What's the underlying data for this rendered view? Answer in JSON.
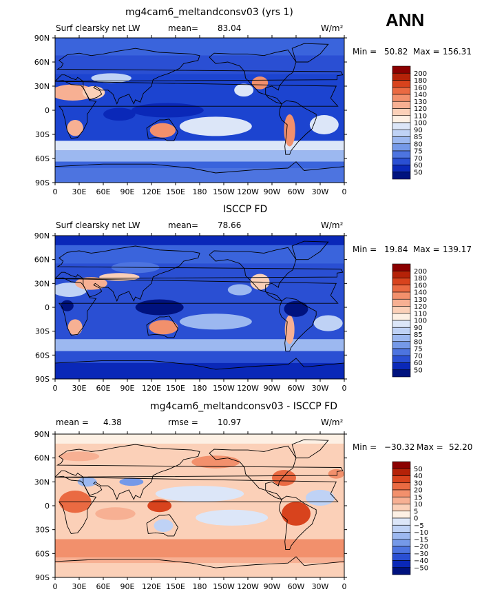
{
  "season": "ANN",
  "panels": [
    {
      "title": "mg4cam6_meltandconsv03 (yrs 1)",
      "left_label": "Surf clearsky net LW",
      "stat_label": "mean=",
      "stat_value": "83.04",
      "units": "W/m²",
      "min_label": "Min =",
      "min_value": "50.82",
      "max_label": "Max =",
      "max_value": "156.31",
      "colorbar": {
        "levels": [
          "200",
          "180",
          "160",
          "140",
          "130",
          "120",
          "110",
          "100",
          "90",
          "85",
          "80",
          "75",
          "70",
          "60",
          "50"
        ],
        "colors": [
          "#8b0000",
          "#b52208",
          "#d8431d",
          "#ea6a42",
          "#f2906c",
          "#f7b093",
          "#fbd0b8",
          "#fdf0e4",
          "#dce6f8",
          "#bfd2f5",
          "#9cb8f0",
          "#7599e8",
          "#4d74e0",
          "#2a4fd3",
          "#0a28b8",
          "#00127e"
        ]
      },
      "field": {
        "base": "#1c44d0",
        "bands": [
          {
            "lat": [
              90,
              68
            ],
            "color": "#3a64dc"
          },
          {
            "lat": [
              68,
              45
            ],
            "color": "#2a4fd3"
          },
          {
            "lat": [
              -38,
              -50
            ],
            "color": "#dce6f8"
          },
          {
            "lat": [
              -50,
              -64
            ],
            "color": "#9cb8f0"
          },
          {
            "lat": [
              -64,
              -72
            ],
            "color": "#3a64dc"
          },
          {
            "lat": [
              -72,
              -90
            ],
            "color": "#4d74e0"
          }
        ],
        "blobs": [
          {
            "lon": 22,
            "lat": 22,
            "rx": 28,
            "ry": 10,
            "color": "#f7b093"
          },
          {
            "lon": 48,
            "lat": 22,
            "rx": 14,
            "ry": 8,
            "color": "#fbd0b8"
          },
          {
            "lon": 25,
            "lat": -22,
            "rx": 10,
            "ry": 10,
            "color": "#f7b093"
          },
          {
            "lon": 134,
            "lat": -25,
            "rx": 16,
            "ry": 9,
            "color": "#f2906c"
          },
          {
            "lon": 255,
            "lat": 34,
            "rx": 10,
            "ry": 8,
            "color": "#f2906c"
          },
          {
            "lon": 292,
            "lat": -25,
            "rx": 7,
            "ry": 20,
            "color": "#f2906c"
          },
          {
            "lon": 200,
            "lat": -20,
            "rx": 45,
            "ry": 12,
            "color": "#dce6f8"
          },
          {
            "lon": 335,
            "lat": -18,
            "rx": 18,
            "ry": 12,
            "color": "#dce6f8"
          },
          {
            "lon": 70,
            "lat": 40,
            "rx": 25,
            "ry": 6,
            "color": "#bfd2f5"
          },
          {
            "lon": 140,
            "lat": 0,
            "rx": 45,
            "ry": 9,
            "color": "#0a28b8"
          },
          {
            "lon": 80,
            "lat": -5,
            "rx": 20,
            "ry": 8,
            "color": "#0a28b8"
          },
          {
            "lon": 235,
            "lat": 25,
            "rx": 12,
            "ry": 8,
            "color": "#dce6f8"
          }
        ]
      }
    },
    {
      "title": "ISCCP FD",
      "left_label": "Surf clearsky net LW",
      "stat_label": "mean=",
      "stat_value": "78.66",
      "units": "W/m²",
      "min_label": "Min =",
      "min_value": "19.84",
      "max_label": "Max =",
      "max_value": "139.17",
      "colorbar": {
        "levels": [
          "200",
          "180",
          "160",
          "140",
          "130",
          "120",
          "110",
          "100",
          "90",
          "85",
          "80",
          "75",
          "70",
          "60",
          "50"
        ],
        "colors": [
          "#8b0000",
          "#b52208",
          "#d8431d",
          "#ea6a42",
          "#f2906c",
          "#f7b093",
          "#fbd0b8",
          "#fdf0e4",
          "#dce6f8",
          "#bfd2f5",
          "#9cb8f0",
          "#7599e8",
          "#4d74e0",
          "#2a4fd3",
          "#0a28b8",
          "#00127e"
        ]
      },
      "field": {
        "base": "#2a4fd3",
        "bands": [
          {
            "lat": [
              90,
              78
            ],
            "color": "#0a28b8"
          },
          {
            "lat": [
              78,
              55
            ],
            "color": "#3a64dc"
          },
          {
            "lat": [
              -40,
              -55
            ],
            "color": "#9cb8f0"
          },
          {
            "lat": [
              -55,
              -70
            ],
            "color": "#2a4fd3"
          },
          {
            "lat": [
              -70,
              -90
            ],
            "color": "#0a28b8"
          }
        ],
        "blobs": [
          {
            "lon": 18,
            "lat": 22,
            "rx": 22,
            "ry": 9,
            "color": "#bfd2f5"
          },
          {
            "lon": 45,
            "lat": 30,
            "rx": 20,
            "ry": 8,
            "color": "#f7b093"
          },
          {
            "lon": 80,
            "lat": 38,
            "rx": 25,
            "ry": 5,
            "color": "#fbd0b8"
          },
          {
            "lon": 25,
            "lat": -25,
            "rx": 9,
            "ry": 10,
            "color": "#f7b093"
          },
          {
            "lon": 135,
            "lat": -25,
            "rx": 18,
            "ry": 9,
            "color": "#f2906c"
          },
          {
            "lon": 255,
            "lat": 32,
            "rx": 12,
            "ry": 10,
            "color": "#fbd0b8"
          },
          {
            "lon": 292,
            "lat": -28,
            "rx": 6,
            "ry": 18,
            "color": "#f7b093"
          },
          {
            "lon": 130,
            "lat": 0,
            "rx": 30,
            "ry": 10,
            "color": "#00127e"
          },
          {
            "lon": 300,
            "lat": -2,
            "rx": 15,
            "ry": 10,
            "color": "#00127e"
          },
          {
            "lon": 15,
            "lat": 2,
            "rx": 8,
            "ry": 7,
            "color": "#00127e"
          },
          {
            "lon": 200,
            "lat": -18,
            "rx": 45,
            "ry": 10,
            "color": "#9cb8f0"
          },
          {
            "lon": 340,
            "lat": -20,
            "rx": 18,
            "ry": 10,
            "color": "#bfd2f5"
          },
          {
            "lon": 230,
            "lat": 22,
            "rx": 15,
            "ry": 7,
            "color": "#9cb8f0"
          },
          {
            "lon": 100,
            "lat": 50,
            "rx": 30,
            "ry": 7,
            "color": "#4d74e0"
          }
        ]
      }
    },
    {
      "title": "mg4cam6_meltandconsv03 - ISCCP FD",
      "left_label": "mean =",
      "left_value": "4.38",
      "stat_label": "rmse =",
      "stat_value": "10.97",
      "units": "W/m²",
      "min_label": "Min =",
      "min_value": "−30.32",
      "max_label": "Max =",
      "max_value": "52.20",
      "colorbar": {
        "levels": [
          "50",
          "40",
          "30",
          "20",
          "15",
          "10",
          "5",
          "0",
          "−5",
          "−10",
          "−15",
          "−20",
          "−30",
          "−40",
          "−50"
        ],
        "colors": [
          "#8b0000",
          "#b52208",
          "#d8431d",
          "#ea6a42",
          "#f2906c",
          "#f7b093",
          "#fbd0b8",
          "#fdf0e4",
          "#dce6f8",
          "#bfd2f5",
          "#9cb8f0",
          "#7599e8",
          "#4d74e0",
          "#2a4fd3",
          "#0a28b8",
          "#00127e"
        ]
      },
      "field": {
        "base": "#fbd0b8",
        "bands": [
          {
            "lat": [
              90,
              78
            ],
            "color": "#fdf0e4"
          },
          {
            "lat": [
              -42,
              -65
            ],
            "color": "#f2906c"
          },
          {
            "lat": [
              -65,
              -72
            ],
            "color": "#f7b093"
          },
          {
            "lat": [
              -72,
              -90
            ],
            "color": "#fbd0b8"
          }
        ],
        "blobs": [
          {
            "lon": 25,
            "lat": 5,
            "rx": 20,
            "ry": 14,
            "color": "#ea6a42"
          },
          {
            "lon": 300,
            "lat": -10,
            "rx": 18,
            "ry": 15,
            "color": "#d8431d"
          },
          {
            "lon": 285,
            "lat": 35,
            "rx": 15,
            "ry": 10,
            "color": "#ea6a42"
          },
          {
            "lon": 130,
            "lat": 0,
            "rx": 15,
            "ry": 8,
            "color": "#d8431d"
          },
          {
            "lon": 95,
            "lat": 30,
            "rx": 15,
            "ry": 5,
            "color": "#7599e8"
          },
          {
            "lon": 40,
            "lat": 30,
            "rx": 12,
            "ry": 6,
            "color": "#9cb8f0"
          },
          {
            "lon": 135,
            "lat": -25,
            "rx": 12,
            "ry": 8,
            "color": "#bfd2f5"
          },
          {
            "lon": 180,
            "lat": 15,
            "rx": 55,
            "ry": 10,
            "color": "#dce6f8"
          },
          {
            "lon": 220,
            "lat": -15,
            "rx": 45,
            "ry": 10,
            "color": "#dce6f8"
          },
          {
            "lon": 330,
            "lat": 10,
            "rx": 18,
            "ry": 10,
            "color": "#bfd2f5"
          },
          {
            "lon": 75,
            "lat": -10,
            "rx": 25,
            "ry": 8,
            "color": "#f7b093"
          },
          {
            "lon": 200,
            "lat": 55,
            "rx": 30,
            "ry": 8,
            "color": "#f2906c"
          },
          {
            "lon": 30,
            "lat": 62,
            "rx": 25,
            "ry": 6,
            "color": "#f7b093"
          },
          {
            "lon": 350,
            "lat": 40,
            "rx": 10,
            "ry": 6,
            "color": "#f2906c"
          }
        ]
      }
    }
  ],
  "lat_ticks": [
    "90N",
    "60N",
    "30N",
    "0",
    "30S",
    "60S",
    "90S"
  ],
  "lon_ticks": [
    "0",
    "30E",
    "60E",
    "90E",
    "120E",
    "150E",
    "180",
    "150W",
    "120W",
    "90W",
    "60W",
    "30W",
    "0"
  ]
}
